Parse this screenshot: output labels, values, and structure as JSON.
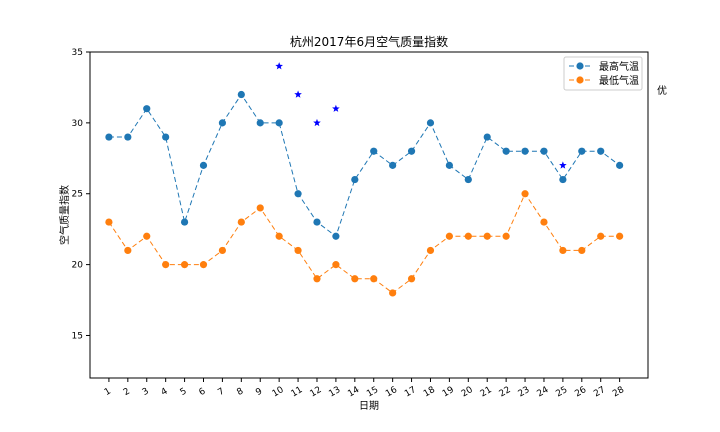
{
  "chart_data": {
    "type": "line",
    "title": "杭州2017年6月空气质量指数",
    "xlabel": "日期",
    "ylabel": "空气质量指数",
    "categories": [
      "1",
      "2",
      "3",
      "4",
      "5",
      "6",
      "7",
      "8",
      "9",
      "10",
      "11",
      "12",
      "13",
      "14",
      "15",
      "16",
      "17",
      "18",
      "19",
      "20",
      "21",
      "22",
      "23",
      "24",
      "25",
      "26",
      "27",
      "28"
    ],
    "x": [
      1,
      2,
      3,
      4,
      5,
      6,
      7,
      8,
      9,
      10,
      11,
      12,
      13,
      14,
      15,
      16,
      17,
      18,
      19,
      20,
      21,
      22,
      23,
      24,
      25,
      26,
      27,
      28
    ],
    "ylim": [
      12,
      35
    ],
    "yticks": [
      15,
      20,
      25,
      30,
      35
    ],
    "grid": false,
    "legend_position": "top-right",
    "series": [
      {
        "name": "最高气温",
        "color": "#1f77b4",
        "values": [
          29,
          29,
          31,
          29,
          23,
          27,
          30,
          32,
          30,
          30,
          25,
          23,
          22,
          26,
          28,
          27,
          28,
          30,
          27,
          26,
          29,
          28,
          28,
          28,
          26,
          28,
          28,
          27
        ]
      },
      {
        "name": "最低气温",
        "color": "#ff7f0e",
        "values": [
          23,
          21,
          22,
          20,
          20,
          20,
          21,
          23,
          24,
          22,
          21,
          19,
          20,
          19,
          19,
          18,
          19,
          21,
          22,
          22,
          22,
          22,
          25,
          23,
          21,
          21,
          22,
          22
        ]
      }
    ],
    "markers": {
      "color": "#0000ff",
      "points": [
        [
          10,
          34
        ],
        [
          11,
          32
        ],
        [
          12,
          30
        ],
        [
          13,
          31
        ],
        [
          25,
          27
        ]
      ]
    },
    "side_annotation": "优"
  }
}
